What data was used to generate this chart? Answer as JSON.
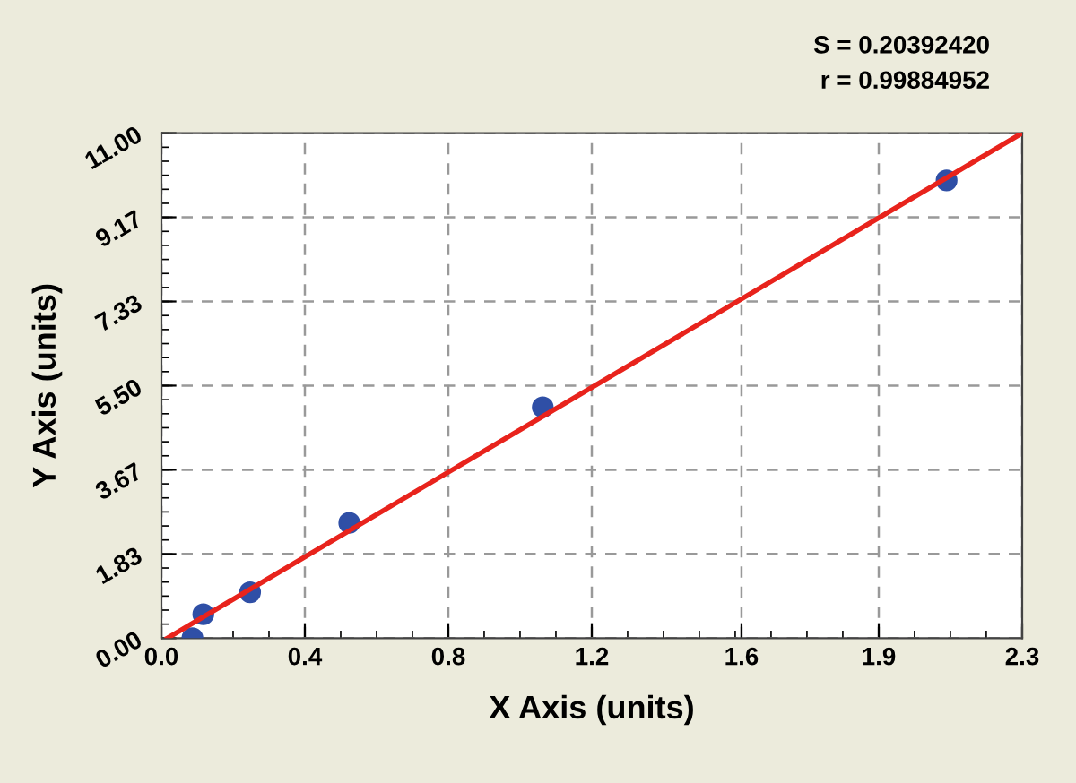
{
  "chart_data": {
    "type": "scatter",
    "xlabel": "X Axis (units)",
    "ylabel": "Y Axis (units)",
    "annotations": [
      "S = 0.20392420",
      "r = 0.99884952"
    ],
    "series": [
      {
        "color": "#2f4fa6",
        "marker": "circle",
        "x": [
          0.083,
          0.112,
          0.237,
          0.502,
          1.019,
          2.098
        ],
        "values": [
          0.0,
          0.52,
          1.0,
          2.51,
          5.03,
          9.97
        ]
      },
      {
        "type": "line",
        "color": "#e8231c",
        "marker": "none",
        "line_style": "solid",
        "x": [
          0.016,
          2.3
        ],
        "values": [
          0.0,
          11.0
        ]
      }
    ],
    "xlim": [
      0,
      2.3
    ],
    "ylim": [
      0,
      11.0
    ],
    "xticks": [
      {
        "value": 0,
        "label": "0.0"
      },
      {
        "value": 0.3833,
        "label": "0.4"
      },
      {
        "value": 0.7667,
        "label": "0.8"
      },
      {
        "value": 1.15,
        "label": "1.2"
      },
      {
        "value": 1.55,
        "label": "1.6"
      },
      {
        "value": 1.9167,
        "label": "1.9"
      },
      {
        "value": 2.3,
        "label": "2.3"
      }
    ],
    "yticks": [
      {
        "value": 0,
        "label": "0.00"
      },
      {
        "value": 1.833,
        "label": "1.83"
      },
      {
        "value": 3.667,
        "label": "3.67"
      },
      {
        "value": 5.5,
        "label": "5.50"
      },
      {
        "value": 7.333,
        "label": "7.33"
      },
      {
        "value": 9.167,
        "label": "9.17"
      },
      {
        "value": 11.0,
        "label": "11.00"
      }
    ],
    "grid": true
  }
}
